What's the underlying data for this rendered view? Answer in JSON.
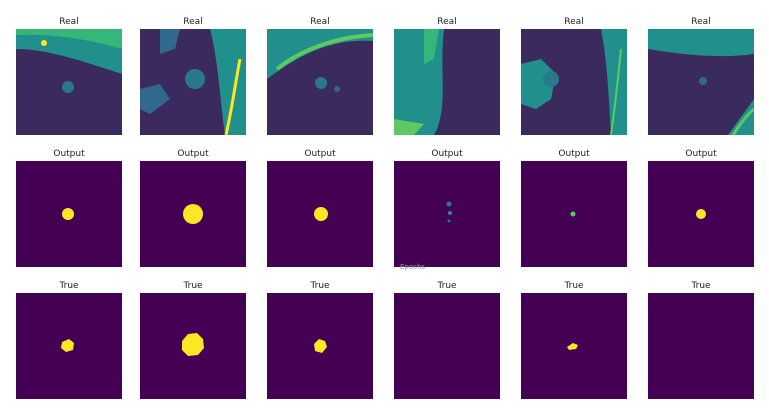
{
  "rows": [
    {
      "kind": "real",
      "panels": [
        {
          "title": "Real"
        },
        {
          "title": "Real"
        },
        {
          "title": "Real"
        },
        {
          "title": "Real"
        },
        {
          "title": "Real"
        },
        {
          "title": "Real"
        }
      ]
    },
    {
      "kind": "output",
      "panels": [
        {
          "title": "Output"
        },
        {
          "title": "Output"
        },
        {
          "title": "Output"
        },
        {
          "title": "Output"
        },
        {
          "title": "Output"
        },
        {
          "title": "Output"
        }
      ]
    },
    {
      "kind": "true",
      "panels": [
        {
          "title": "True"
        },
        {
          "title": "True"
        },
        {
          "title": "True"
        },
        {
          "title": "True"
        },
        {
          "title": "True"
        },
        {
          "title": "True"
        }
      ]
    }
  ],
  "stray_label": "Epochs",
  "colors": {
    "background": "#440154",
    "foreground": "#fde725",
    "ct_dark": "#3b2a5e",
    "ct_mid": "#21908d",
    "ct_light": "#5ec962"
  }
}
